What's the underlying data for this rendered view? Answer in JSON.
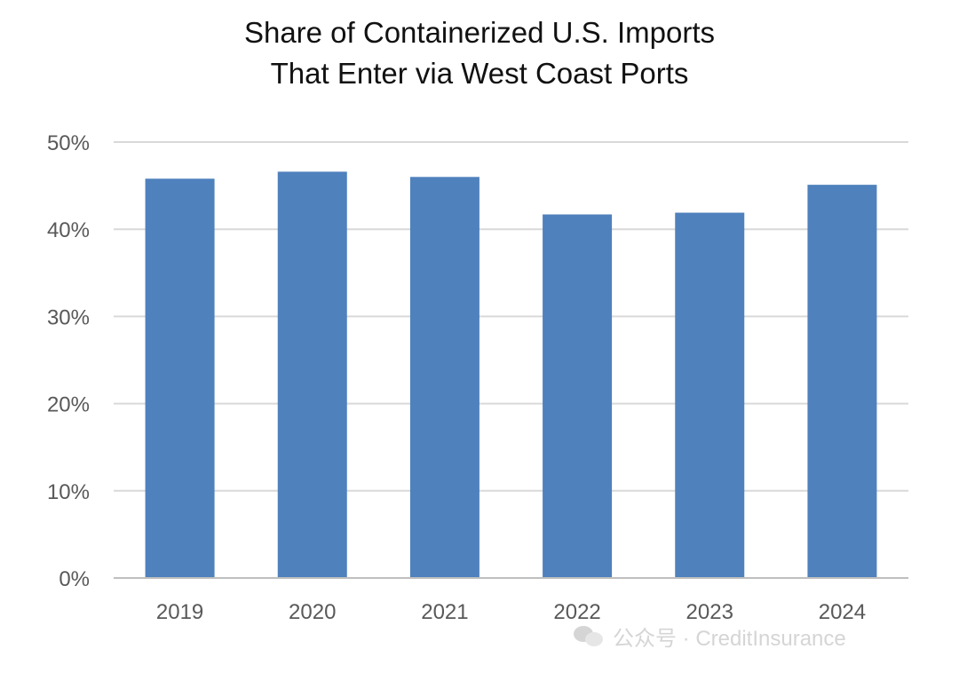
{
  "chart_data": {
    "type": "bar",
    "title_lines": [
      "Share of Containerized U.S. Imports",
      "That Enter via West Coast Ports"
    ],
    "categories": [
      "2019",
      "2020",
      "2021",
      "2022",
      "2023",
      "2024"
    ],
    "values": [
      45.8,
      46.6,
      46.0,
      41.7,
      41.9,
      45.1
    ],
    "xlabel": "",
    "ylabel": "",
    "ylim": [
      0,
      50
    ],
    "y_ticks": [
      0,
      10,
      20,
      30,
      40,
      50
    ],
    "y_tick_labels": [
      "0%",
      "10%",
      "20%",
      "30%",
      "40%",
      "50%"
    ],
    "grid": true,
    "legend": "none",
    "colors": {
      "bar": "#4f81bd",
      "grid": "#d9d9d9",
      "axis": "#bfbfbf",
      "tick_text": "#595959",
      "title_text": "#111111"
    }
  },
  "watermark": {
    "text": "公众号 · CreditInsurance",
    "icon": "wechat-icon"
  }
}
